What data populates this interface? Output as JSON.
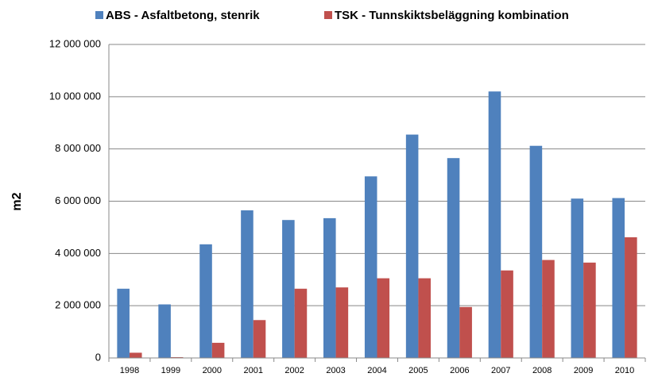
{
  "chart_data": {
    "type": "bar",
    "y_label": "m2",
    "categories": [
      "1998",
      "1999",
      "2000",
      "2001",
      "2002",
      "2003",
      "2004",
      "2005",
      "2006",
      "2007",
      "2008",
      "2009",
      "2010"
    ],
    "series": [
      {
        "name": "ABS - Asfaltbetong, stenrik",
        "color": "#4f81bd",
        "values": [
          2650000,
          2050000,
          4350000,
          5650000,
          5280000,
          5350000,
          6950000,
          8550000,
          7650000,
          10200000,
          8120000,
          6100000,
          6120000
        ]
      },
      {
        "name": "TSK - Tunnskiktsbeläggning kombination",
        "color": "#c0504d",
        "values": [
          200000,
          30000,
          580000,
          1450000,
          2650000,
          2700000,
          3050000,
          3050000,
          1950000,
          3350000,
          3750000,
          3650000,
          4620000
        ]
      }
    ],
    "ylim": [
      0,
      12000000
    ],
    "yticks": [
      0,
      {
        "value": 2000000,
        "label": "2 000 000"
      },
      {
        "value": 4000000,
        "label": "4 000 000"
      },
      {
        "value": 6000000,
        "label": "6 000 000"
      },
      {
        "value": 8000000,
        "label": "8 000 000"
      },
      {
        "value": 10000000,
        "label": "10 000 000"
      },
      {
        "value": 12000000,
        "label": "12 000 000"
      }
    ],
    "grid": true,
    "legend": "top"
  }
}
